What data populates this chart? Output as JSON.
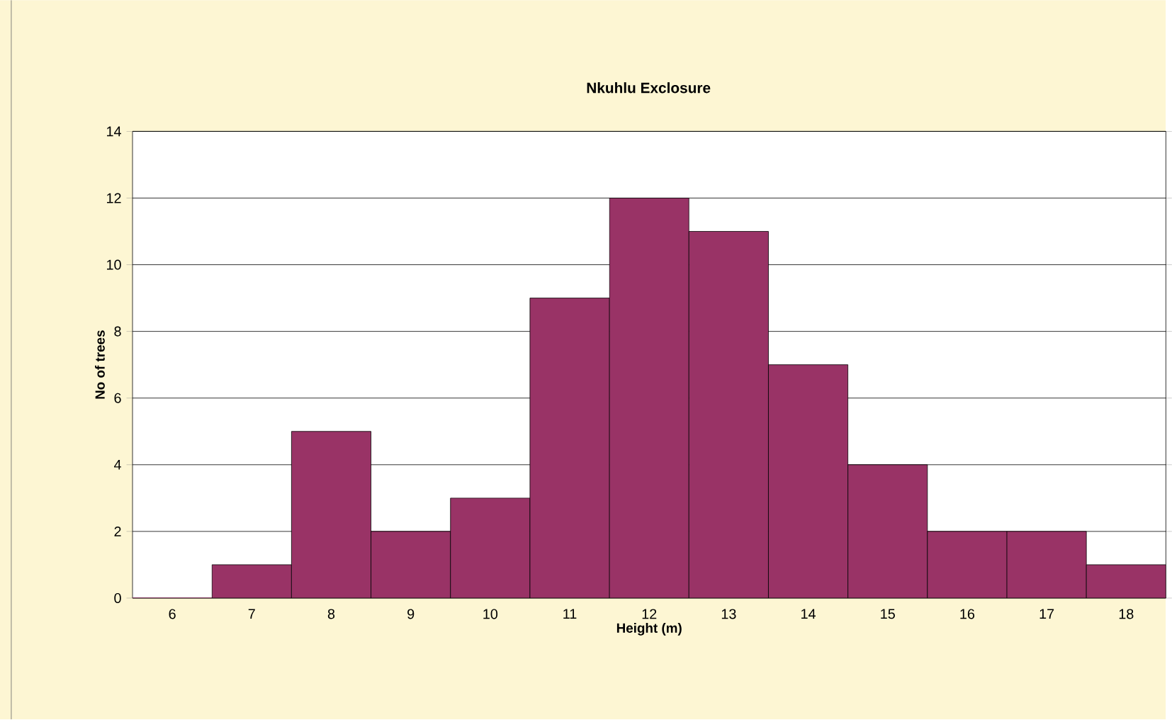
{
  "chart_data": {
    "type": "bar",
    "title": "Nkuhlu Exclosure",
    "xlabel": "Height (m)",
    "ylabel": "No of trees",
    "categories": [
      "6",
      "7",
      "8",
      "9",
      "10",
      "11",
      "12",
      "13",
      "14",
      "15",
      "16",
      "17",
      "18"
    ],
    "values": [
      0,
      1,
      5,
      2,
      3,
      9,
      12,
      11,
      7,
      4,
      2,
      2,
      1
    ],
    "color": "#993366",
    "ylim": [
      0,
      14
    ],
    "yticks": [
      0,
      2,
      4,
      6,
      8,
      10,
      12,
      14
    ],
    "grid": "y"
  }
}
